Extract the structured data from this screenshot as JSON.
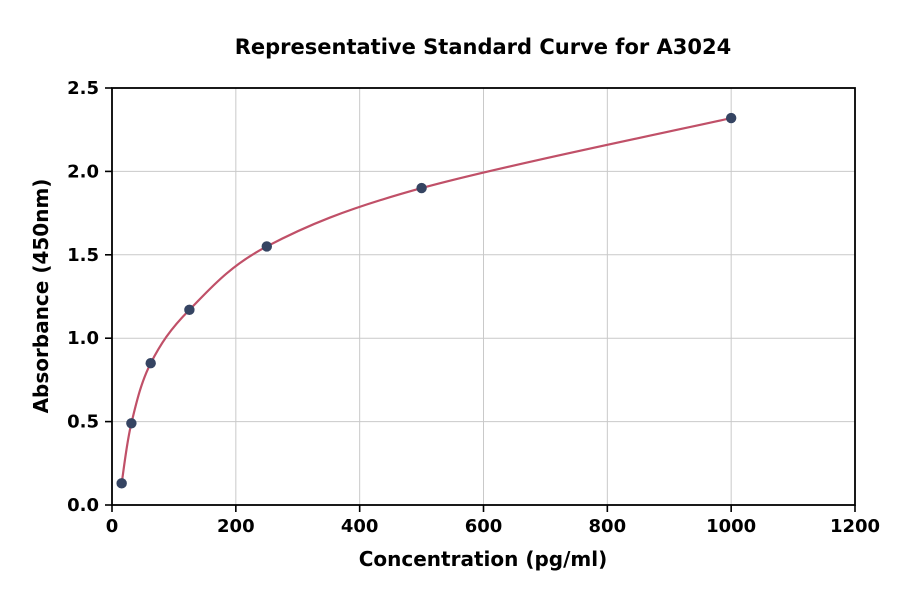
{
  "chart_data": {
    "type": "scatter",
    "title": "Representative Standard Curve for A3024",
    "xlabel": "Concentration (pg/ml)",
    "ylabel": "Absorbance (450nm)",
    "xlim": [
      0,
      1200
    ],
    "ylim": [
      0,
      2.5
    ],
    "x_ticks": [
      0,
      200,
      400,
      600,
      800,
      1000,
      1200
    ],
    "x_tick_labels": [
      "0",
      "200",
      "400",
      "600",
      "800",
      "1000",
      "1200"
    ],
    "y_ticks": [
      0,
      0.5,
      1.0,
      1.5,
      2.0,
      2.5
    ],
    "y_tick_labels": [
      "0.0",
      "0.5",
      "1.0",
      "1.5",
      "2.0",
      "2.5"
    ],
    "grid": true,
    "legend": "none",
    "series": [
      {
        "name": "standard-points",
        "points": [
          {
            "x": 15.6,
            "y": 0.13
          },
          {
            "x": 31.3,
            "y": 0.49
          },
          {
            "x": 62.5,
            "y": 0.85
          },
          {
            "x": 125,
            "y": 1.17
          },
          {
            "x": 250,
            "y": 1.55
          },
          {
            "x": 500,
            "y": 1.9
          },
          {
            "x": 1000,
            "y": 2.32
          }
        ]
      }
    ],
    "fit_curve": "smooth curve through standard points",
    "colors": {
      "point_color": "#354462",
      "line_color": "#c05068",
      "grid_color": "#c9c9c9",
      "axis_color": "#000000",
      "background": "#ffffff"
    }
  }
}
